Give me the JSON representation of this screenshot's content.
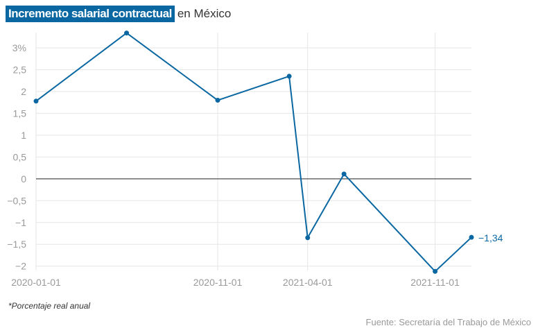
{
  "title": {
    "highlight": "Incremento salarial contractual",
    "rest": "en México"
  },
  "note": "*Porcentaje real anual",
  "source": "Fuente: Secretaría del Trabajo de México",
  "colors": {
    "line": "#0a67a1",
    "highlight_bg": "#0a67a1",
    "grid": "#e6e6e6",
    "axis_text": "#999999",
    "zero_line": "#222222"
  },
  "chart_data": {
    "type": "line",
    "title": "Incremento salarial contractual en México",
    "xlabel": "",
    "ylabel": "",
    "x": [
      "2020-01-01",
      "2020-06-01",
      "2020-11-01",
      "2021-03-01",
      "2021-04-01",
      "2021-06-01",
      "2021-11-01",
      "2022-01-01"
    ],
    "y": [
      1.78,
      3.34,
      1.8,
      2.35,
      -1.35,
      0.11,
      -2.12,
      -1.34
    ],
    "ylim": [
      -2.1,
      3.35
    ],
    "yticks": [
      -2,
      -1.5,
      -1,
      -0.5,
      0,
      0.5,
      1,
      1.5,
      2,
      2.5,
      3
    ],
    "ytick_labels": [
      "−2",
      "−1,5",
      "−1",
      "−0,5",
      "0",
      "0,5",
      "1",
      "1,5",
      "2",
      "2,5",
      "3%"
    ],
    "xticks": [
      "2020-01-01",
      "2020-11-01",
      "2021-04-01",
      "2021-11-01"
    ],
    "end_label": "−1,34",
    "grid": true
  }
}
